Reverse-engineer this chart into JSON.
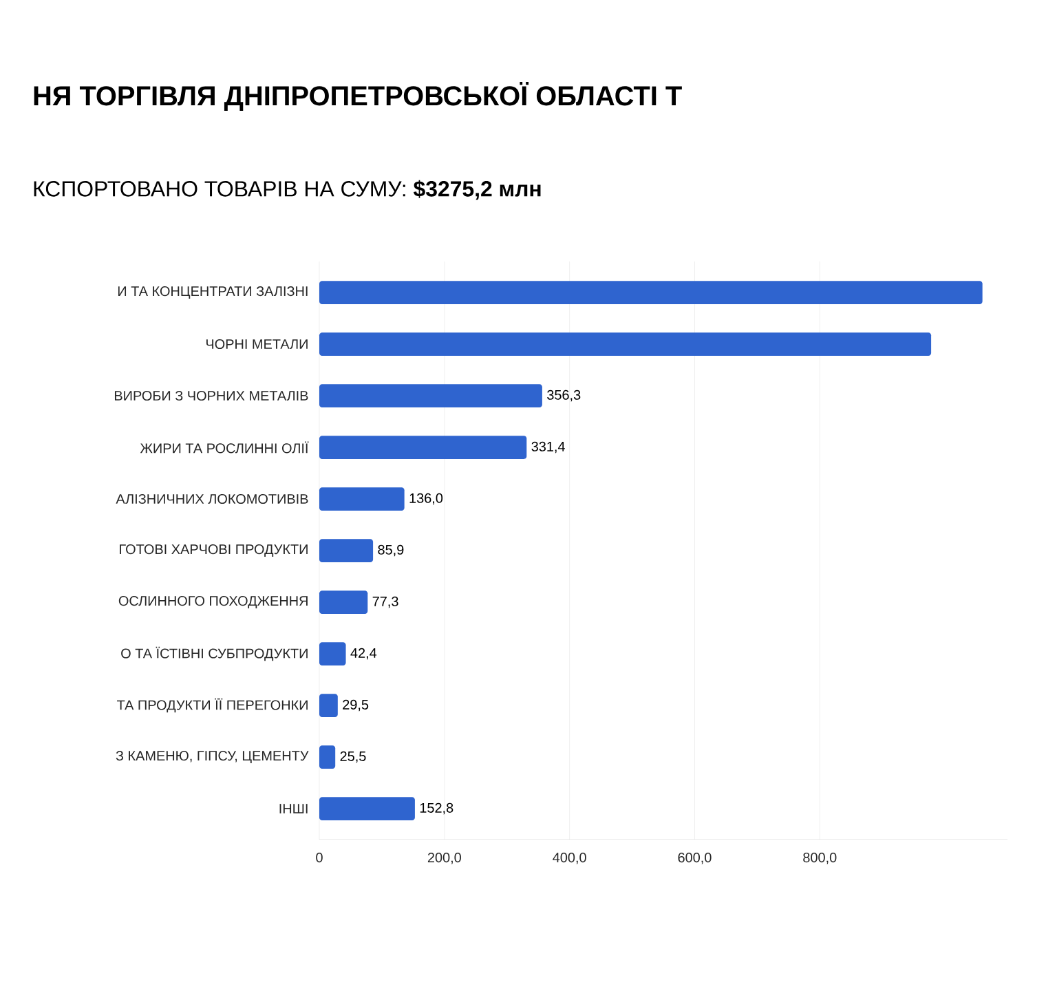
{
  "chart_data": {
    "type": "bar",
    "orientation": "horizontal",
    "title": "НЯ ТОРГІВЛЯ ДНІПРОПЕТРОВСЬКОЇ ОБЛАСТІ Т",
    "subtitle": "КСПОРТОВАНО ТОВАРІВ НА СУМУ:  **$3275,2 млн**",
    "categories": [
      "И ТА КОНЦЕНТРАТИ ЗАЛІЗНІ",
      "ЧОРНІ МЕТАЛИ",
      "ВИРОБИ З ЧОРНИХ МЕТАЛІВ",
      "ЖИРИ ТА РОСЛИННІ ОЛІЇ",
      "АЛІЗНИЧНИХ ЛОКОМОТИВІВ",
      "ГОТОВІ ХАРЧОВІ ПРОДУКТИ",
      "ОСЛИННОГО ПОХОДЖЕННЯ",
      "О ТА ЇСТІВНІ СУБПРОДУКТИ",
      "ТА ПРОДУКТИ ЇЇ ПЕРЕГОНКИ",
      "З КАМЕНЮ, ГІПСУ, ЦЕМЕНТУ",
      "ІНШІ"
    ],
    "values": [
      1060,
      978,
      356.3,
      331.4,
      136.0,
      85.9,
      77.3,
      42.4,
      29.5,
      25.5,
      152.8
    ],
    "value_labels": [
      null,
      null,
      "356,3",
      "331,4",
      "136,0",
      "85,9",
      "77,3",
      "42,4",
      "29,5",
      "25,5",
      "152,8"
    ],
    "color": "#2f64cf",
    "xlim": [
      0,
      1100
    ],
    "xticks": [
      {
        "value": 0,
        "label": "0"
      },
      {
        "value": 200,
        "label": "200,0"
      },
      {
        "value": 400,
        "label": "400,0"
      },
      {
        "value": 600,
        "label": "600,0"
      },
      {
        "value": 800,
        "label": "800,0"
      }
    ],
    "grid": "x"
  }
}
